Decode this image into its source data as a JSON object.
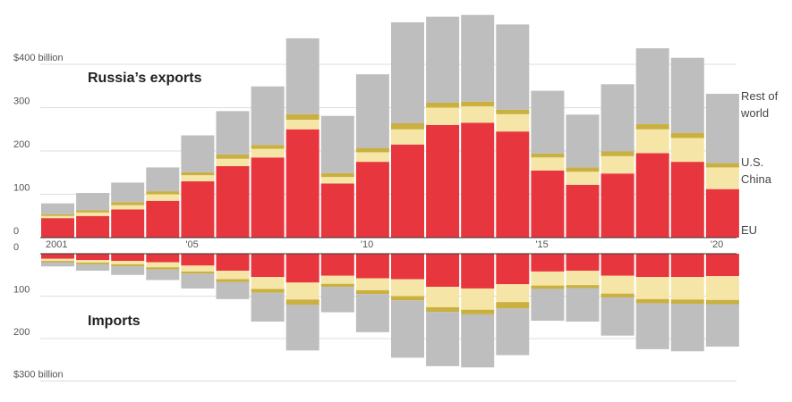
{
  "chart_data": {
    "type": "bar",
    "stacked": true,
    "years": [
      2001,
      2002,
      2003,
      2004,
      2005,
      2006,
      2007,
      2008,
      2009,
      2010,
      2011,
      2012,
      2013,
      2014,
      2015,
      2016,
      2017,
      2018,
      2019,
      2020
    ],
    "year_labels": {
      "2001": "2001",
      "2005": "'05",
      "2010": "'10",
      "2015": "'15",
      "2020": "'20"
    },
    "colors": {
      "EU": "#e8363e",
      "China": "#f5e6a8",
      "US": "#c9b040",
      "Rest": "#bebebe"
    },
    "exports": {
      "title": "Russia’s exports",
      "ylim": [
        0,
        400
      ],
      "tick_labels": [
        "0",
        "100",
        "200",
        "300",
        "$400 billion"
      ],
      "series": [
        {
          "name": "EU",
          "values": [
            45,
            50,
            65,
            85,
            130,
            165,
            185,
            250,
            125,
            175,
            215,
            260,
            265,
            245,
            155,
            122,
            148,
            195,
            175,
            112
          ]
        },
        {
          "name": "China",
          "values": [
            5,
            8,
            10,
            15,
            14,
            17,
            20,
            22,
            15,
            22,
            35,
            40,
            38,
            40,
            30,
            30,
            40,
            55,
            55,
            50
          ]
        },
        {
          "name": "U.S.",
          "values": [
            4,
            5,
            7,
            7,
            7,
            10,
            9,
            13,
            9,
            10,
            14,
            12,
            11,
            10,
            9,
            10,
            11,
            12,
            12,
            10
          ]
        },
        {
          "name": "Rest of world",
          "values": [
            25,
            40,
            45,
            55,
            85,
            100,
            135,
            175,
            132,
            170,
            233,
            198,
            200,
            197,
            145,
            122,
            155,
            175,
            173,
            160
          ]
        }
      ],
      "legend": [
        "Rest of world",
        "U.S.",
        "China",
        "EU"
      ]
    },
    "imports": {
      "title": "Imports",
      "ylim": [
        0,
        300
      ],
      "tick_labels": [
        "0",
        "100",
        "200",
        "$300 billion"
      ],
      "series": [
        {
          "name": "EU",
          "values": [
            12,
            15,
            17,
            20,
            28,
            40,
            55,
            68,
            52,
            58,
            60,
            78,
            82,
            72,
            42,
            40,
            52,
            55,
            55,
            53
          ]
        },
        {
          "name": "China",
          "values": [
            5,
            6,
            8,
            12,
            14,
            20,
            28,
            40,
            19,
            28,
            40,
            48,
            50,
            42,
            33,
            34,
            42,
            52,
            53,
            56
          ]
        },
        {
          "name": "U.S.",
          "values": [
            3,
            4,
            5,
            5,
            5,
            7,
            9,
            12,
            7,
            9,
            10,
            11,
            11,
            15,
            8,
            7,
            9,
            10,
            10,
            10
          ]
        },
        {
          "name": "Rest of world",
          "values": [
            10,
            15,
            20,
            25,
            35,
            40,
            68,
            108,
            60,
            90,
            135,
            128,
            125,
            110,
            75,
            79,
            90,
            108,
            112,
            100
          ]
        }
      ]
    }
  }
}
